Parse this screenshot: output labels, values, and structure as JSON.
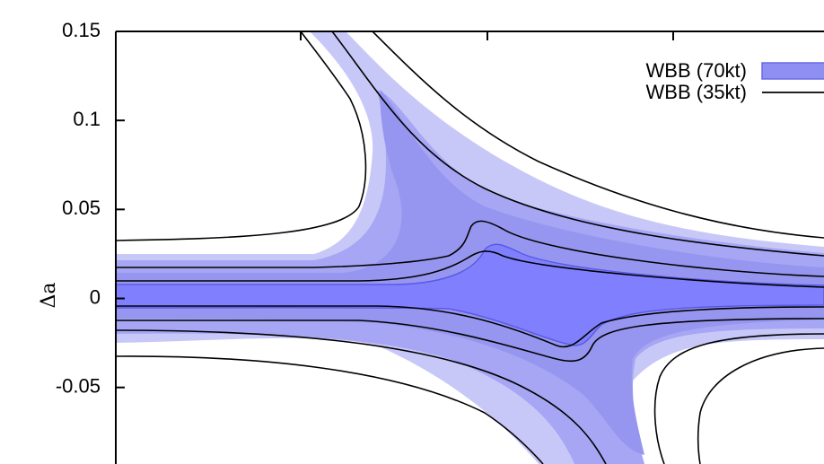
{
  "chart_data": {
    "type": "contour",
    "ylabel": "Δa",
    "ylim": [
      -0.093,
      0.15
    ],
    "y_ticks": [
      0.15,
      0.1,
      0.05,
      0,
      -0.05
    ],
    "y_tick_labels": [
      "0.15",
      "0.1",
      "0.05",
      "0",
      "-0.05"
    ],
    "legend_position": "top-right",
    "series": [
      {
        "name": "WBB (70kt)",
        "style": "filled",
        "colors": [
          "#8080ff",
          "#a6a6f5",
          "#c8c8f8"
        ]
      },
      {
        "name": "WBB (35kt)",
        "style": "line",
        "color": "#000000"
      }
    ]
  }
}
